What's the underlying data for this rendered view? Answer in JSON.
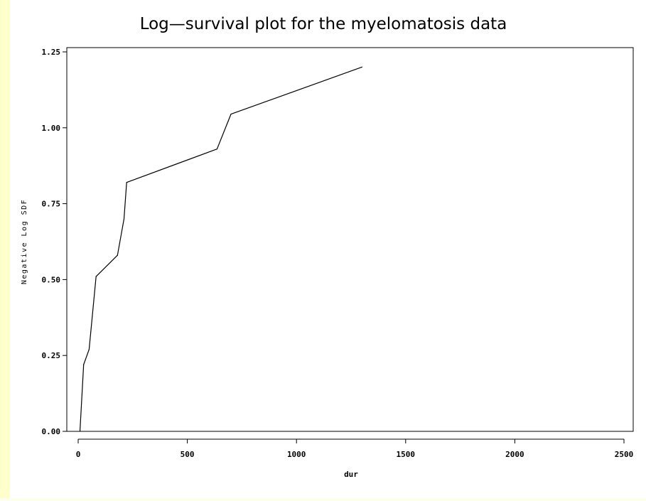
{
  "chart_data": {
    "type": "line",
    "title": "Log—survival plot for the myelomatosis data",
    "xlabel": "dur",
    "ylabel": "Negative Log SDF",
    "xlim": [
      0,
      2500
    ],
    "ylim": [
      0,
      1.25
    ],
    "x_ticks": [
      "0",
      "500",
      "1000",
      "1500",
      "2000",
      "2500"
    ],
    "y_ticks": [
      "0.00",
      "0.25",
      "0.50",
      "0.75",
      "1.00",
      "1.25"
    ],
    "grid": false,
    "series": [
      {
        "x": [
          8,
          25,
          50,
          82,
          180,
          210,
          222,
          636,
          700,
          1300
        ],
        "y": [
          0.0,
          0.22,
          0.27,
          0.51,
          0.58,
          0.7,
          0.82,
          0.93,
          1.045,
          1.2
        ]
      }
    ],
    "colors": {
      "line": "#000000",
      "background": "#ffffff",
      "border": "#ffffcc"
    }
  }
}
